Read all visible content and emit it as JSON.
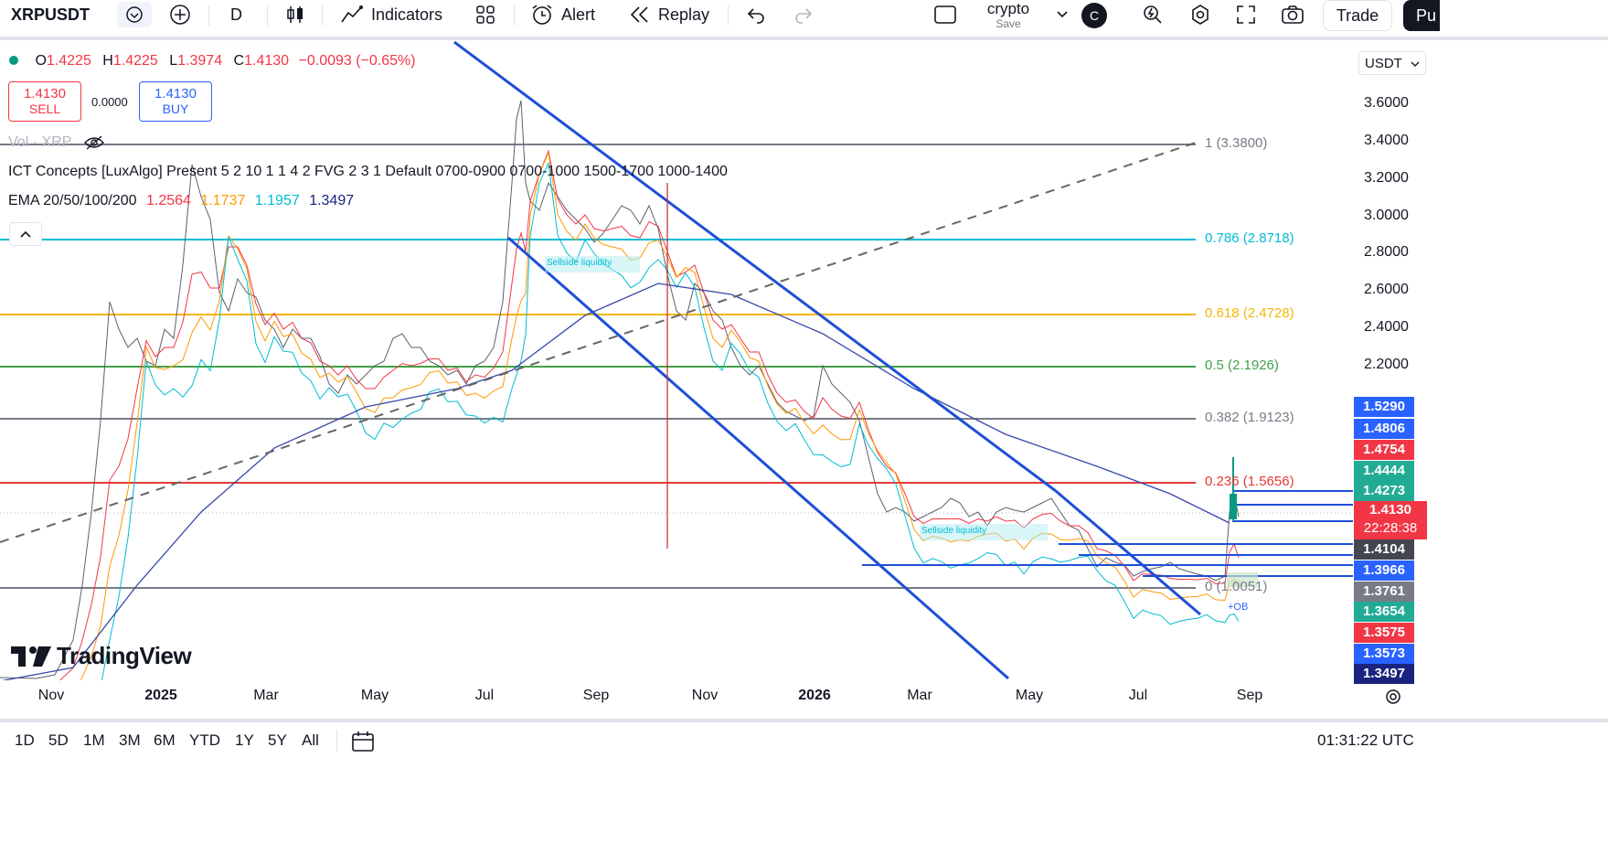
{
  "toolbar": {
    "symbol": "XRPUSDT",
    "interval": "D",
    "indicators_label": "Indicators",
    "alert_label": "Alert",
    "replay_label": "Replay",
    "layout_name": "crypto",
    "layout_save": "Save",
    "avatar_letter": "C",
    "trade_label": "Trade",
    "publish_label": "Pu"
  },
  "legend": {
    "ohlc": {
      "o_label": "O",
      "o": "1.4225",
      "h_label": "H",
      "h": "1.4225",
      "l_label": "L",
      "l": "1.3974",
      "c_label": "C",
      "c": "1.4130",
      "change": "−0.0093 (−0.65%)"
    },
    "sell_price": "1.4130",
    "sell_label": "SELL",
    "spread": "0.0000",
    "buy_price": "1.4130",
    "buy_label": "BUY",
    "vol_label": "Vol · XRP",
    "ict_label": "ICT Concepts [LuxAlgo]",
    "ict_params": "Present 5 2 10 1 1 4 2 FVG 2 3 1 Default 0700-0900 0700-1000 1500-1700 1000-1400",
    "ema_label": "EMA 20/50/100/200",
    "ema_values": [
      "1.2564",
      "1.1737",
      "1.1957",
      "1.3497"
    ]
  },
  "currency": "USDT",
  "fib_levels": [
    {
      "label": "1 (3.3800)",
      "color": "#787b86"
    },
    {
      "label": "0.786 (2.8718)",
      "color": "#00bcd4"
    },
    {
      "label": "0.618 (2.4728)",
      "color": "#f2b705"
    },
    {
      "label": "0.5 (2.1926)",
      "color": "#43a047"
    },
    {
      "label": "0.382 (1.9123)",
      "color": "#787b86"
    },
    {
      "label": "0.236 (1.5656)",
      "color": "#e53935"
    },
    {
      "label": "0 (1.0051)",
      "color": "#787b86"
    }
  ],
  "chart_annotations": {
    "sellside_1": "Sellside liquidity",
    "sellside_2": "Sellside liquidity",
    "ob": "+OB"
  },
  "price_axis": [
    "3.6000",
    "3.4000",
    "3.2000",
    "3.0000",
    "2.8000",
    "2.6000",
    "2.4000",
    "2.2000"
  ],
  "price_tags": [
    {
      "value": "1.5290",
      "color": "#2962ff"
    },
    {
      "value": "1.4806",
      "color": "#2962ff"
    },
    {
      "value": "1.4754",
      "color": "#f23645"
    },
    {
      "value": "1.4444",
      "color": "#22ab94"
    },
    {
      "value": "1.4273",
      "color": "#22ab94"
    },
    {
      "value": "1.4104",
      "color": "#434651"
    },
    {
      "value": "1.3966",
      "color": "#2962ff"
    },
    {
      "value": "1.3761",
      "color": "#787b86"
    },
    {
      "value": "1.3654",
      "color": "#22ab94"
    },
    {
      "value": "1.3575",
      "color": "#f23645"
    },
    {
      "value": "1.3573",
      "color": "#2962ff"
    },
    {
      "value": "1.3497",
      "color": "#1a237e"
    }
  ],
  "current_price": {
    "value": "1.4130",
    "countdown": "22:28:38",
    "color": "#f23645"
  },
  "time_axis": [
    "Nov",
    "2025",
    "Mar",
    "May",
    "Jul",
    "Sep",
    "Nov",
    "2026",
    "Mar",
    "May",
    "Jul",
    "Sep"
  ],
  "timeframes": [
    "1D",
    "5D",
    "1M",
    "3M",
    "6M",
    "YTD",
    "1Y",
    "5Y",
    "All"
  ],
  "clock": "01:31:22 UTC",
  "watermark": "TradingView"
}
